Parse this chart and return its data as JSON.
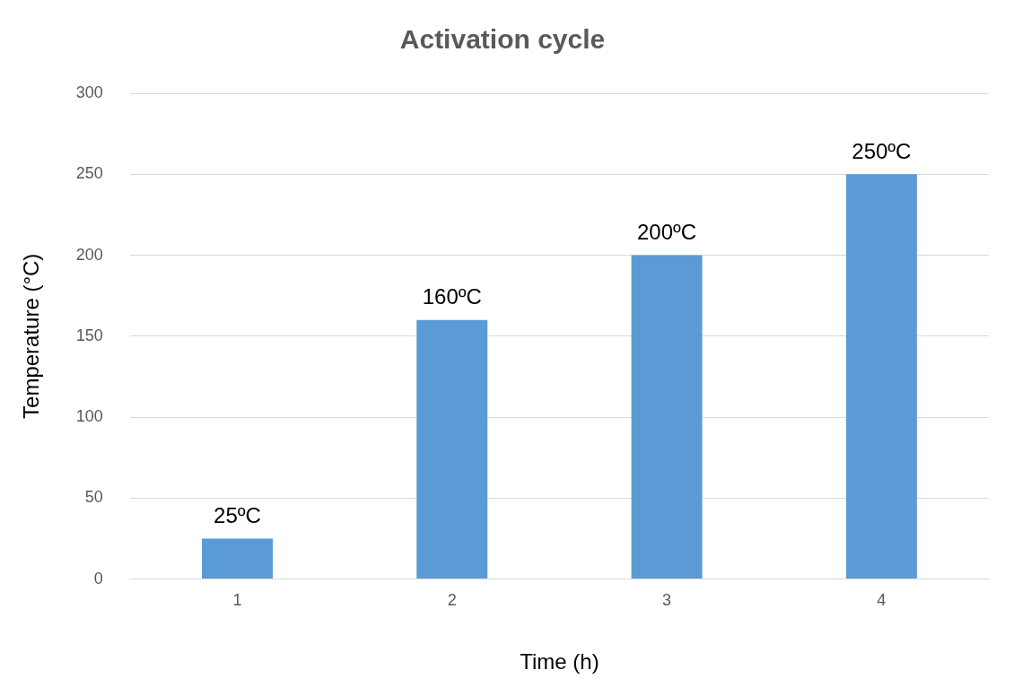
{
  "chart_data": {
    "type": "bar",
    "title": "Activation cycle",
    "xlabel": "Time (h)",
    "ylabel": "Temperature (°C)",
    "categories": [
      "1",
      "2",
      "3",
      "4"
    ],
    "values": [
      25,
      160,
      200,
      250
    ],
    "value_labels": [
      "25ºC",
      "160ºC",
      "200ºC",
      "250ºC"
    ],
    "color": "#5b9bd5",
    "ylim": [
      0,
      300
    ],
    "yticks": [
      0,
      50,
      100,
      150,
      200,
      250,
      300
    ],
    "grid": "y",
    "legend": false
  }
}
